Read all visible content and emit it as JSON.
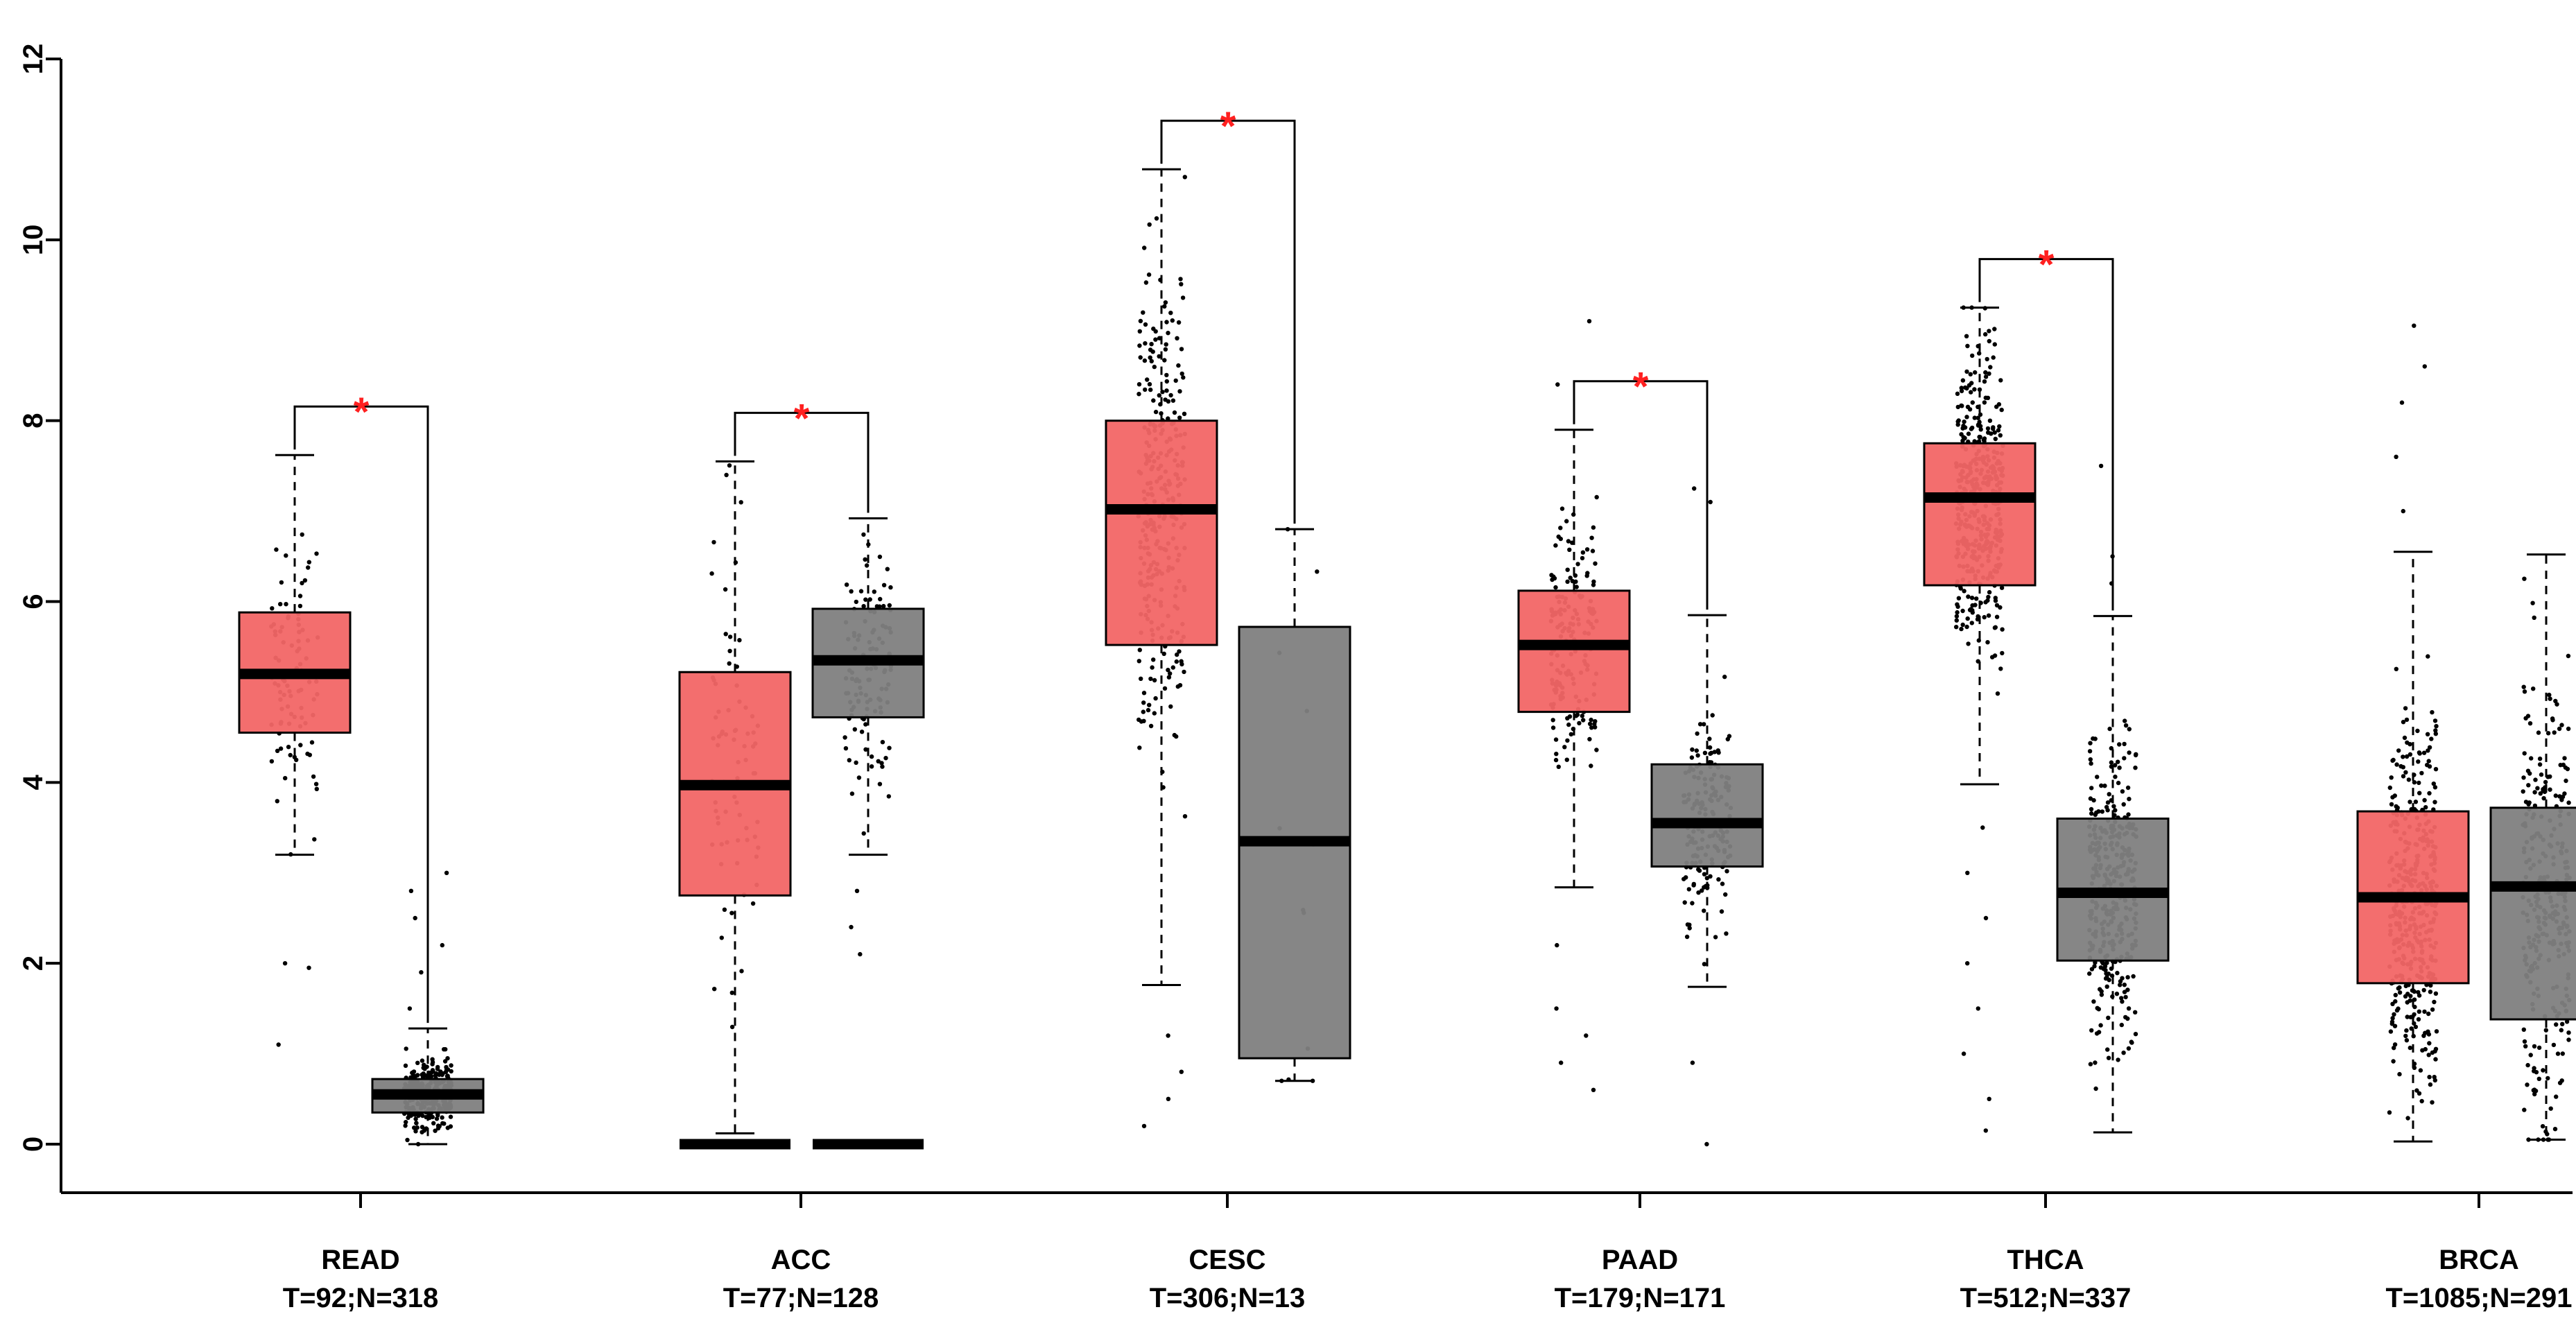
{
  "chart_data": {
    "type": "boxplot",
    "title": "",
    "xlabel": "",
    "ylabel": "",
    "ylim": [
      0,
      12
    ],
    "yticks": [
      0,
      2,
      4,
      6,
      8,
      10,
      12
    ],
    "ytick_labels": [
      "0",
      "2",
      "4",
      "6",
      "8",
      "10",
      "12"
    ],
    "colors": {
      "tumor": "#f26666",
      "normal": "#7f7f7f",
      "significance": "#ff2020",
      "axis": "#000000"
    },
    "categories": [
      {
        "name": "READ",
        "counts": "T=92;N=318",
        "significant": true,
        "sig_label": "*",
        "tumor": {
          "q1": 4.55,
          "median": 5.2,
          "q3": 5.88,
          "whisker_low": 3.2,
          "whisker_high": 7.62,
          "outliers": [
            1.1,
            1.95,
            2.0
          ]
        },
        "normal": {
          "q1": 0.35,
          "median": 0.55,
          "q3": 0.72,
          "whisker_low": 0.0,
          "whisker_high": 1.28,
          "outliers": [
            1.5,
            1.9,
            2.2,
            2.5,
            2.8,
            3.0
          ]
        }
      },
      {
        "name": "ACC",
        "counts": "T=77;N=128",
        "significant": true,
        "sig_label": "*",
        "tumor": {
          "q1": 2.75,
          "median": 3.97,
          "q3": 5.22,
          "whisker_low": 0.12,
          "whisker_high": 7.55,
          "outliers": []
        },
        "normal": {
          "q1": 4.72,
          "median": 5.35,
          "q3": 5.92,
          "whisker_low": 3.2,
          "whisker_high": 6.92,
          "outliers": [
            2.1,
            2.4,
            2.8
          ]
        },
        "zero_bars": true
      },
      {
        "name": "CESC",
        "counts": "T=306;N=13",
        "significant": true,
        "sig_label": "*",
        "tumor": {
          "q1": 5.52,
          "median": 7.02,
          "q3": 8.0,
          "whisker_low": 1.76,
          "whisker_high": 10.78,
          "outliers": [
            0.2,
            0.5,
            0.8,
            1.2
          ]
        },
        "normal": {
          "q1": 0.95,
          "median": 3.35,
          "q3": 5.72,
          "whisker_low": 0.7,
          "whisker_high": 6.8,
          "outliers": []
        }
      },
      {
        "name": "PAAD",
        "counts": "T=179;N=171",
        "significant": true,
        "sig_label": "*",
        "tumor": {
          "q1": 4.78,
          "median": 5.52,
          "q3": 6.12,
          "whisker_low": 2.84,
          "whisker_high": 7.9,
          "outliers": [
            0.6,
            0.9,
            1.2,
            1.5,
            2.2,
            8.4,
            9.1
          ]
        },
        "normal": {
          "q1": 3.07,
          "median": 3.55,
          "q3": 4.2,
          "whisker_low": 1.74,
          "whisker_high": 5.85,
          "outliers": [
            0.0,
            0.9,
            7.1,
            7.25
          ]
        }
      },
      {
        "name": "THCA",
        "counts": "T=512;N=337",
        "significant": true,
        "sig_label": "*",
        "tumor": {
          "q1": 6.18,
          "median": 7.15,
          "q3": 7.75,
          "whisker_low": 3.98,
          "whisker_high": 9.25,
          "outliers": [
            0.15,
            0.5,
            1.0,
            1.5,
            2.0,
            2.5,
            3.0,
            3.5
          ]
        },
        "normal": {
          "q1": 2.03,
          "median": 2.78,
          "q3": 3.6,
          "whisker_low": 0.13,
          "whisker_high": 5.84,
          "outliers": [
            6.2,
            6.5,
            7.5
          ]
        }
      },
      {
        "name": "BRCA",
        "counts": "T=1085;N=291",
        "significant": false,
        "sig_label": "",
        "tumor": {
          "q1": 1.78,
          "median": 2.73,
          "q3": 3.68,
          "whisker_low": 0.03,
          "whisker_high": 6.55,
          "outliers": [
            7.0,
            7.6,
            8.2,
            8.6,
            9.05
          ]
        },
        "normal": {
          "q1": 1.38,
          "median": 2.85,
          "q3": 3.72,
          "whisker_low": 0.05,
          "whisker_high": 6.52,
          "outliers": []
        }
      }
    ]
  }
}
